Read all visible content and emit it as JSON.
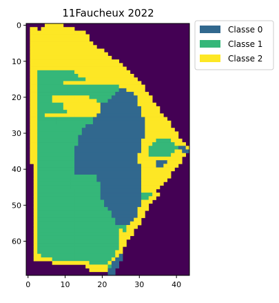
{
  "chart_data": {
    "type": "heatmap",
    "title": "11Faucheux 2022",
    "xlabel": "",
    "ylabel": "",
    "cols": 44,
    "rows": 70,
    "xlim": [
      -0.5,
      43.5
    ],
    "ylim": [
      69.5,
      -0.5
    ],
    "x_ticks": [
      0,
      10,
      20,
      30,
      40
    ],
    "y_ticks": [
      0,
      10,
      20,
      30,
      40,
      50,
      60
    ],
    "grid": false,
    "legend_position": "outside-top-right",
    "background_value": -1,
    "background_color": "#440154",
    "series": [
      {
        "name": "Classe 0",
        "value": 0,
        "color": "#31688e"
      },
      {
        "name": "Classe 1",
        "value": 1,
        "color": "#35b779"
      },
      {
        "name": "Classe 2",
        "value": 2,
        "color": "#fde725"
      }
    ],
    "row_runs": [
      [
        [
          5,
          9,
          2
        ]
      ],
      [
        [
          1,
          2,
          2
        ],
        [
          4,
          12,
          2
        ]
      ],
      [
        [
          1,
          12,
          2
        ],
        [
          13,
          15,
          2
        ]
      ],
      [
        [
          1,
          13,
          2
        ],
        [
          14,
          16,
          2
        ]
      ],
      [
        [
          1,
          16,
          2
        ]
      ],
      [
        [
          1,
          17,
          2
        ]
      ],
      [
        [
          1,
          18,
          2
        ]
      ],
      [
        [
          1,
          20,
          2
        ]
      ],
      [
        [
          1,
          21,
          2
        ]
      ],
      [
        [
          1,
          22,
          2
        ]
      ],
      [
        [
          1,
          24,
          2
        ]
      ],
      [
        [
          1,
          25,
          2
        ]
      ],
      [
        [
          1,
          26,
          2
        ]
      ],
      [
        [
          1,
          2,
          2
        ],
        [
          3,
          12,
          1
        ],
        [
          13,
          27,
          2
        ]
      ],
      [
        [
          1,
          2,
          2
        ],
        [
          3,
          13,
          1
        ],
        [
          14,
          28,
          2
        ]
      ],
      [
        [
          1,
          2,
          2
        ],
        [
          3,
          15,
          1
        ],
        [
          16,
          29,
          2
        ]
      ],
      [
        [
          1,
          2,
          2
        ],
        [
          3,
          9,
          1
        ],
        [
          10,
          30,
          2
        ]
      ],
      [
        [
          1,
          2,
          2
        ],
        [
          3,
          9,
          1
        ],
        [
          10,
          24,
          1
        ],
        [
          25,
          31,
          2
        ]
      ],
      [
        [
          1,
          2,
          2
        ],
        [
          3,
          10,
          1
        ],
        [
          11,
          24,
          1
        ],
        [
          25,
          26,
          0
        ],
        [
          27,
          31,
          2
        ]
      ],
      [
        [
          1,
          2,
          2
        ],
        [
          3,
          10,
          1
        ],
        [
          11,
          23,
          1
        ],
        [
          24,
          28,
          0
        ],
        [
          29,
          32,
          2
        ]
      ],
      [
        [
          1,
          2,
          2
        ],
        [
          3,
          6,
          1
        ],
        [
          7,
          12,
          2
        ],
        [
          13,
          16,
          2
        ],
        [
          17,
          22,
          1
        ],
        [
          23,
          29,
          0
        ],
        [
          30,
          33,
          2
        ]
      ],
      [
        [
          1,
          2,
          2
        ],
        [
          3,
          6,
          1
        ],
        [
          7,
          13,
          2
        ],
        [
          14,
          18,
          2
        ],
        [
          19,
          21,
          1
        ],
        [
          22,
          29,
          0
        ],
        [
          30,
          33,
          2
        ]
      ],
      [
        [
          1,
          2,
          2
        ],
        [
          3,
          9,
          1
        ],
        [
          10,
          19,
          2
        ],
        [
          20,
          29,
          0
        ],
        [
          30,
          34,
          2
        ]
      ],
      [
        [
          1,
          2,
          2
        ],
        [
          3,
          9,
          1
        ],
        [
          10,
          19,
          2
        ],
        [
          20,
          30,
          0
        ],
        [
          31,
          35,
          2
        ]
      ],
      [
        [
          1,
          2,
          2
        ],
        [
          3,
          10,
          1
        ],
        [
          11,
          19,
          2
        ],
        [
          20,
          30,
          0
        ],
        [
          31,
          35,
          2
        ]
      ],
      [
        [
          1,
          2,
          2
        ],
        [
          3,
          4,
          1
        ],
        [
          5,
          12,
          2
        ],
        [
          13,
          18,
          2
        ],
        [
          19,
          30,
          0
        ],
        [
          31,
          36,
          2
        ]
      ],
      [
        [
          1,
          2,
          2
        ],
        [
          3,
          7,
          1
        ],
        [
          8,
          17,
          1
        ],
        [
          18,
          31,
          0
        ],
        [
          32,
          37,
          2
        ]
      ],
      [
        [
          1,
          2,
          2
        ],
        [
          3,
          7,
          1
        ],
        [
          8,
          17,
          1
        ],
        [
          18,
          31,
          0
        ],
        [
          32,
          38,
          2
        ]
      ],
      [
        [
          1,
          2,
          2
        ],
        [
          3,
          15,
          1
        ],
        [
          16,
          31,
          0
        ],
        [
          32,
          38,
          2
        ]
      ],
      [
        [
          1,
          2,
          2
        ],
        [
          3,
          14,
          1
        ],
        [
          15,
          31,
          0
        ],
        [
          32,
          39,
          2
        ]
      ],
      [
        [
          1,
          2,
          2
        ],
        [
          3,
          14,
          1
        ],
        [
          15,
          31,
          0
        ],
        [
          32,
          40,
          2
        ]
      ],
      [
        [
          1,
          2,
          2
        ],
        [
          3,
          13,
          1
        ],
        [
          14,
          31,
          0
        ],
        [
          32,
          40,
          2
        ]
      ],
      [
        [
          1,
          2,
          2
        ],
        [
          3,
          13,
          1
        ],
        [
          14,
          30,
          0
        ],
        [
          31,
          34,
          2
        ],
        [
          35,
          38,
          1
        ],
        [
          39,
          41,
          2
        ]
      ],
      [
        [
          1,
          2,
          2
        ],
        [
          3,
          13,
          1
        ],
        [
          14,
          30,
          0
        ],
        [
          31,
          33,
          2
        ],
        [
          34,
          39,
          1
        ],
        [
          40,
          42,
          2
        ]
      ],
      [
        [
          1,
          2,
          2
        ],
        [
          3,
          12,
          1
        ],
        [
          13,
          30,
          0
        ],
        [
          31,
          32,
          2
        ],
        [
          33,
          40,
          1
        ],
        [
          41,
          42,
          0
        ],
        [
          43,
          43,
          2
        ]
      ],
      [
        [
          1,
          2,
          2
        ],
        [
          3,
          12,
          1
        ],
        [
          13,
          30,
          0
        ],
        [
          31,
          32,
          2
        ],
        [
          33,
          39,
          1
        ],
        [
          40,
          41,
          2
        ],
        [
          42,
          43,
          0
        ]
      ],
      [
        [
          1,
          2,
          2
        ],
        [
          3,
          12,
          1
        ],
        [
          13,
          29,
          0
        ],
        [
          30,
          32,
          2
        ],
        [
          33,
          38,
          1
        ],
        [
          39,
          42,
          2
        ]
      ],
      [
        [
          1,
          2,
          2
        ],
        [
          3,
          12,
          1
        ],
        [
          13,
          29,
          0
        ],
        [
          30,
          41,
          2
        ]
      ],
      [
        [
          1,
          2,
          2
        ],
        [
          3,
          12,
          1
        ],
        [
          13,
          29,
          0
        ],
        [
          30,
          34,
          2
        ],
        [
          35,
          37,
          0
        ],
        [
          38,
          41,
          2
        ]
      ],
      [
        [
          2,
          2,
          2
        ],
        [
          3,
          12,
          1
        ],
        [
          13,
          30,
          0
        ],
        [
          31,
          34,
          2
        ],
        [
          35,
          36,
          0
        ],
        [
          37,
          40,
          2
        ]
      ],
      [
        [
          2,
          2,
          2
        ],
        [
          3,
          12,
          1
        ],
        [
          13,
          30,
          0
        ],
        [
          31,
          39,
          2
        ]
      ],
      [
        [
          2,
          2,
          2
        ],
        [
          3,
          12,
          1
        ],
        [
          13,
          30,
          0
        ],
        [
          31,
          38,
          2
        ]
      ],
      [
        [
          2,
          2,
          2
        ],
        [
          3,
          11,
          1
        ],
        [
          12,
          18,
          1
        ],
        [
          19,
          30,
          0
        ],
        [
          31,
          38,
          2
        ]
      ],
      [
        [
          2,
          2,
          2
        ],
        [
          3,
          11,
          1
        ],
        [
          12,
          18,
          1
        ],
        [
          19,
          30,
          0
        ],
        [
          31,
          37,
          2
        ]
      ],
      [
        [
          2,
          2,
          2
        ],
        [
          3,
          11,
          1
        ],
        [
          12,
          19,
          1
        ],
        [
          20,
          30,
          0
        ],
        [
          31,
          36,
          2
        ]
      ],
      [
        [
          2,
          2,
          2
        ],
        [
          3,
          11,
          1
        ],
        [
          12,
          19,
          1
        ],
        [
          20,
          30,
          0
        ],
        [
          31,
          35,
          2
        ]
      ],
      [
        [
          2,
          2,
          2
        ],
        [
          3,
          12,
          1
        ],
        [
          13,
          19,
          1
        ],
        [
          20,
          30,
          0
        ],
        [
          31,
          34,
          2
        ]
      ],
      [
        [
          2,
          2,
          2
        ],
        [
          3,
          12,
          1
        ],
        [
          13,
          19,
          1
        ],
        [
          20,
          30,
          0
        ],
        [
          31,
          33,
          1
        ],
        [
          34,
          35,
          2
        ]
      ],
      [
        [
          2,
          2,
          2
        ],
        [
          3,
          12,
          1
        ],
        [
          13,
          19,
          1
        ],
        [
          20,
          30,
          0
        ],
        [
          31,
          32,
          1
        ],
        [
          33,
          34,
          2
        ]
      ],
      [
        [
          2,
          2,
          2
        ],
        [
          3,
          12,
          1
        ],
        [
          13,
          20,
          1
        ],
        [
          21,
          30,
          0
        ],
        [
          31,
          33,
          2
        ]
      ],
      [
        [
          2,
          2,
          2
        ],
        [
          3,
          12,
          1
        ],
        [
          13,
          20,
          1
        ],
        [
          21,
          30,
          0
        ],
        [
          31,
          32,
          2
        ]
      ],
      [
        [
          2,
          2,
          2
        ],
        [
          3,
          12,
          1
        ],
        [
          13,
          21,
          1
        ],
        [
          22,
          29,
          0
        ],
        [
          30,
          32,
          2
        ]
      ],
      [
        [
          2,
          2,
          2
        ],
        [
          3,
          12,
          1
        ],
        [
          13,
          22,
          1
        ],
        [
          23,
          29,
          0
        ],
        [
          30,
          31,
          2
        ]
      ],
      [
        [
          2,
          2,
          2
        ],
        [
          3,
          12,
          1
        ],
        [
          13,
          22,
          1
        ],
        [
          23,
          29,
          0
        ],
        [
          30,
          31,
          2
        ]
      ],
      [
        [
          2,
          2,
          2
        ],
        [
          3,
          12,
          1
        ],
        [
          13,
          23,
          1
        ],
        [
          24,
          28,
          0
        ],
        [
          29,
          30,
          2
        ]
      ],
      [
        [
          2,
          2,
          2
        ],
        [
          3,
          12,
          1
        ],
        [
          13,
          23,
          1
        ],
        [
          24,
          27,
          0
        ],
        [
          28,
          30,
          2
        ]
      ],
      [
        [
          2,
          2,
          2
        ],
        [
          3,
          12,
          1
        ],
        [
          13,
          23,
          1
        ],
        [
          24,
          26,
          1
        ],
        [
          27,
          29,
          2
        ]
      ],
      [
        [
          2,
          2,
          2
        ],
        [
          3,
          12,
          1
        ],
        [
          13,
          24,
          1
        ],
        [
          25,
          25,
          2
        ],
        [
          26,
          26,
          1
        ],
        [
          27,
          28,
          2
        ]
      ],
      [
        [
          2,
          2,
          2
        ],
        [
          3,
          12,
          1
        ],
        [
          13,
          24,
          1
        ],
        [
          25,
          28,
          2
        ]
      ],
      [
        [
          2,
          2,
          2
        ],
        [
          3,
          12,
          1
        ],
        [
          13,
          24,
          1
        ],
        [
          25,
          27,
          2
        ]
      ],
      [
        [
          2,
          2,
          2
        ],
        [
          3,
          12,
          1
        ],
        [
          13,
          24,
          1
        ],
        [
          25,
          26,
          2
        ]
      ],
      [
        [
          2,
          2,
          2
        ],
        [
          3,
          12,
          1
        ],
        [
          13,
          24,
          1
        ],
        [
          25,
          26,
          2
        ]
      ],
      [
        [
          2,
          2,
          2
        ],
        [
          3,
          12,
          1
        ],
        [
          13,
          24,
          1
        ],
        [
          25,
          25,
          2
        ]
      ],
      [
        [
          2,
          2,
          2
        ],
        [
          3,
          12,
          1
        ],
        [
          13,
          23,
          1
        ],
        [
          24,
          25,
          2
        ]
      ],
      [
        [
          2,
          3,
          2
        ],
        [
          4,
          12,
          1
        ],
        [
          13,
          23,
          1
        ],
        [
          24,
          24,
          2
        ],
        [
          25,
          25,
          0
        ]
      ],
      [
        [
          2,
          6,
          2
        ],
        [
          7,
          12,
          1
        ],
        [
          13,
          22,
          1
        ],
        [
          23,
          23,
          2
        ],
        [
          24,
          25,
          0
        ]
      ],
      [
        [
          7,
          16,
          2
        ],
        [
          17,
          21,
          1
        ],
        [
          22,
          22,
          2
        ],
        [
          23,
          24,
          0
        ]
      ],
      [
        [
          16,
          21,
          2
        ],
        [
          22,
          22,
          1
        ],
        [
          23,
          24,
          0
        ]
      ],
      [
        [
          17,
          21,
          2
        ],
        [
          22,
          23,
          0
        ]
      ],
      [
        [
          22,
          23,
          0
        ]
      ]
    ]
  }
}
